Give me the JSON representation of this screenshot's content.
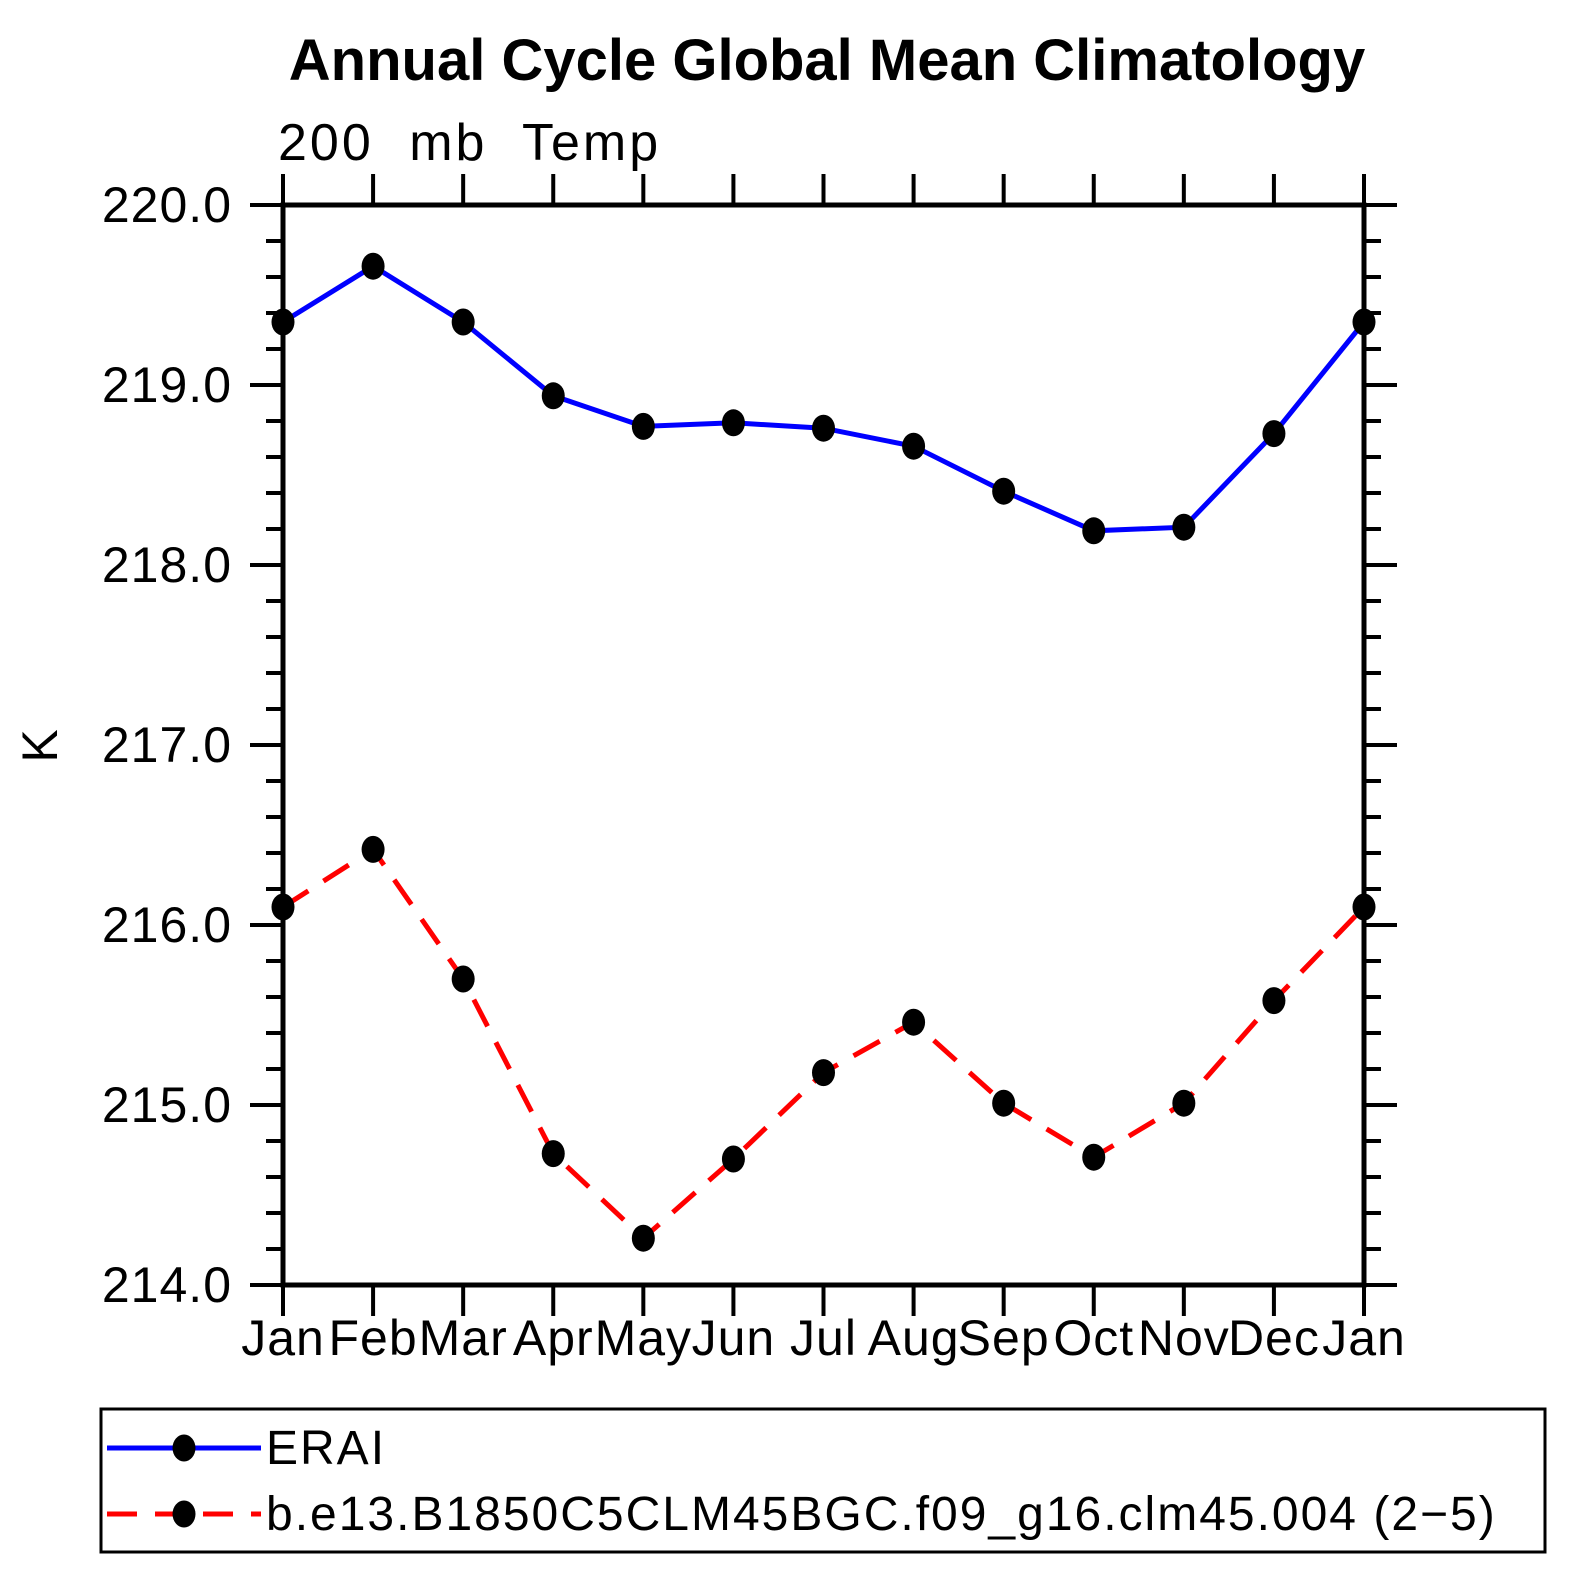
{
  "page": {
    "background": "#ffffff"
  },
  "chart_data": {
    "type": "line",
    "title": "Annual Cycle Global Mean Climatology",
    "subtitle": "200 mb Temp",
    "ylabel": "K",
    "ylim": [
      214.0,
      220.0
    ],
    "ytick_interval": 1.0,
    "yminor_interval": 0.2,
    "ytick_labels": [
      "214.0",
      "215.0",
      "216.0",
      "217.0",
      "218.0",
      "219.0",
      "220.0"
    ],
    "categories": [
      "Jan",
      "Feb",
      "Mar",
      "Apr",
      "May",
      "Jun",
      "Jul",
      "Aug",
      "Sep",
      "Oct",
      "Nov",
      "Dec",
      "Jan"
    ],
    "grid": false,
    "legend_position": "bottom",
    "frame_color": "#000000",
    "marker_color": "#000000",
    "series": [
      {
        "name": "ERAI",
        "color": "#0000ff",
        "line_style": "solid",
        "values": [
          219.35,
          219.66,
          219.35,
          218.94,
          218.77,
          218.79,
          218.76,
          218.66,
          218.41,
          218.19,
          218.21,
          218.73,
          219.35
        ]
      },
      {
        "name": "b.e13.B1850C5CLM45BGC.f09_g16.clm45.004 (2−5)",
        "color": "#ff0000",
        "line_style": "dashed",
        "values": [
          216.1,
          216.42,
          215.7,
          214.73,
          214.26,
          214.7,
          215.18,
          215.46,
          215.01,
          214.71,
          215.01,
          215.58,
          216.1
        ]
      }
    ]
  }
}
